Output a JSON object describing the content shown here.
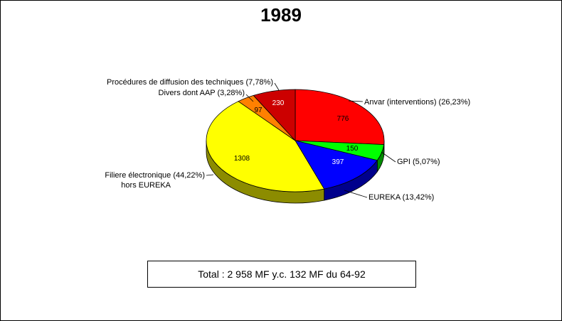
{
  "chart_data": {
    "type": "pie",
    "title": "1989",
    "slices": [
      {
        "label": "Anvar (interventions) (26,23%)",
        "value": 776,
        "value_label": "776",
        "color": "#ff0000"
      },
      {
        "label": "GPI (5,07%)",
        "value": 150,
        "value_label": "150",
        "color": "#00ff00"
      },
      {
        "label": "EUREKA (13,42%)",
        "value": 397,
        "value_label": "397",
        "color": "#0000ff"
      },
      {
        "label": "Filiere électronique (44,22%)|hors EUREKA",
        "value": 1308,
        "value_label": "1308",
        "color": "#ffff00"
      },
      {
        "label": "Divers dont AAP (3,28%)",
        "value": 97,
        "value_label": "97",
        "color": "#ff8000"
      },
      {
        "label": "Procédures de diffusion des techniques (7,78%)",
        "value": 230,
        "value_label": "230",
        "color": "#cc0000"
      }
    ],
    "note": "Total : 2 958 MF y.c. 132 MF du 64-92"
  }
}
